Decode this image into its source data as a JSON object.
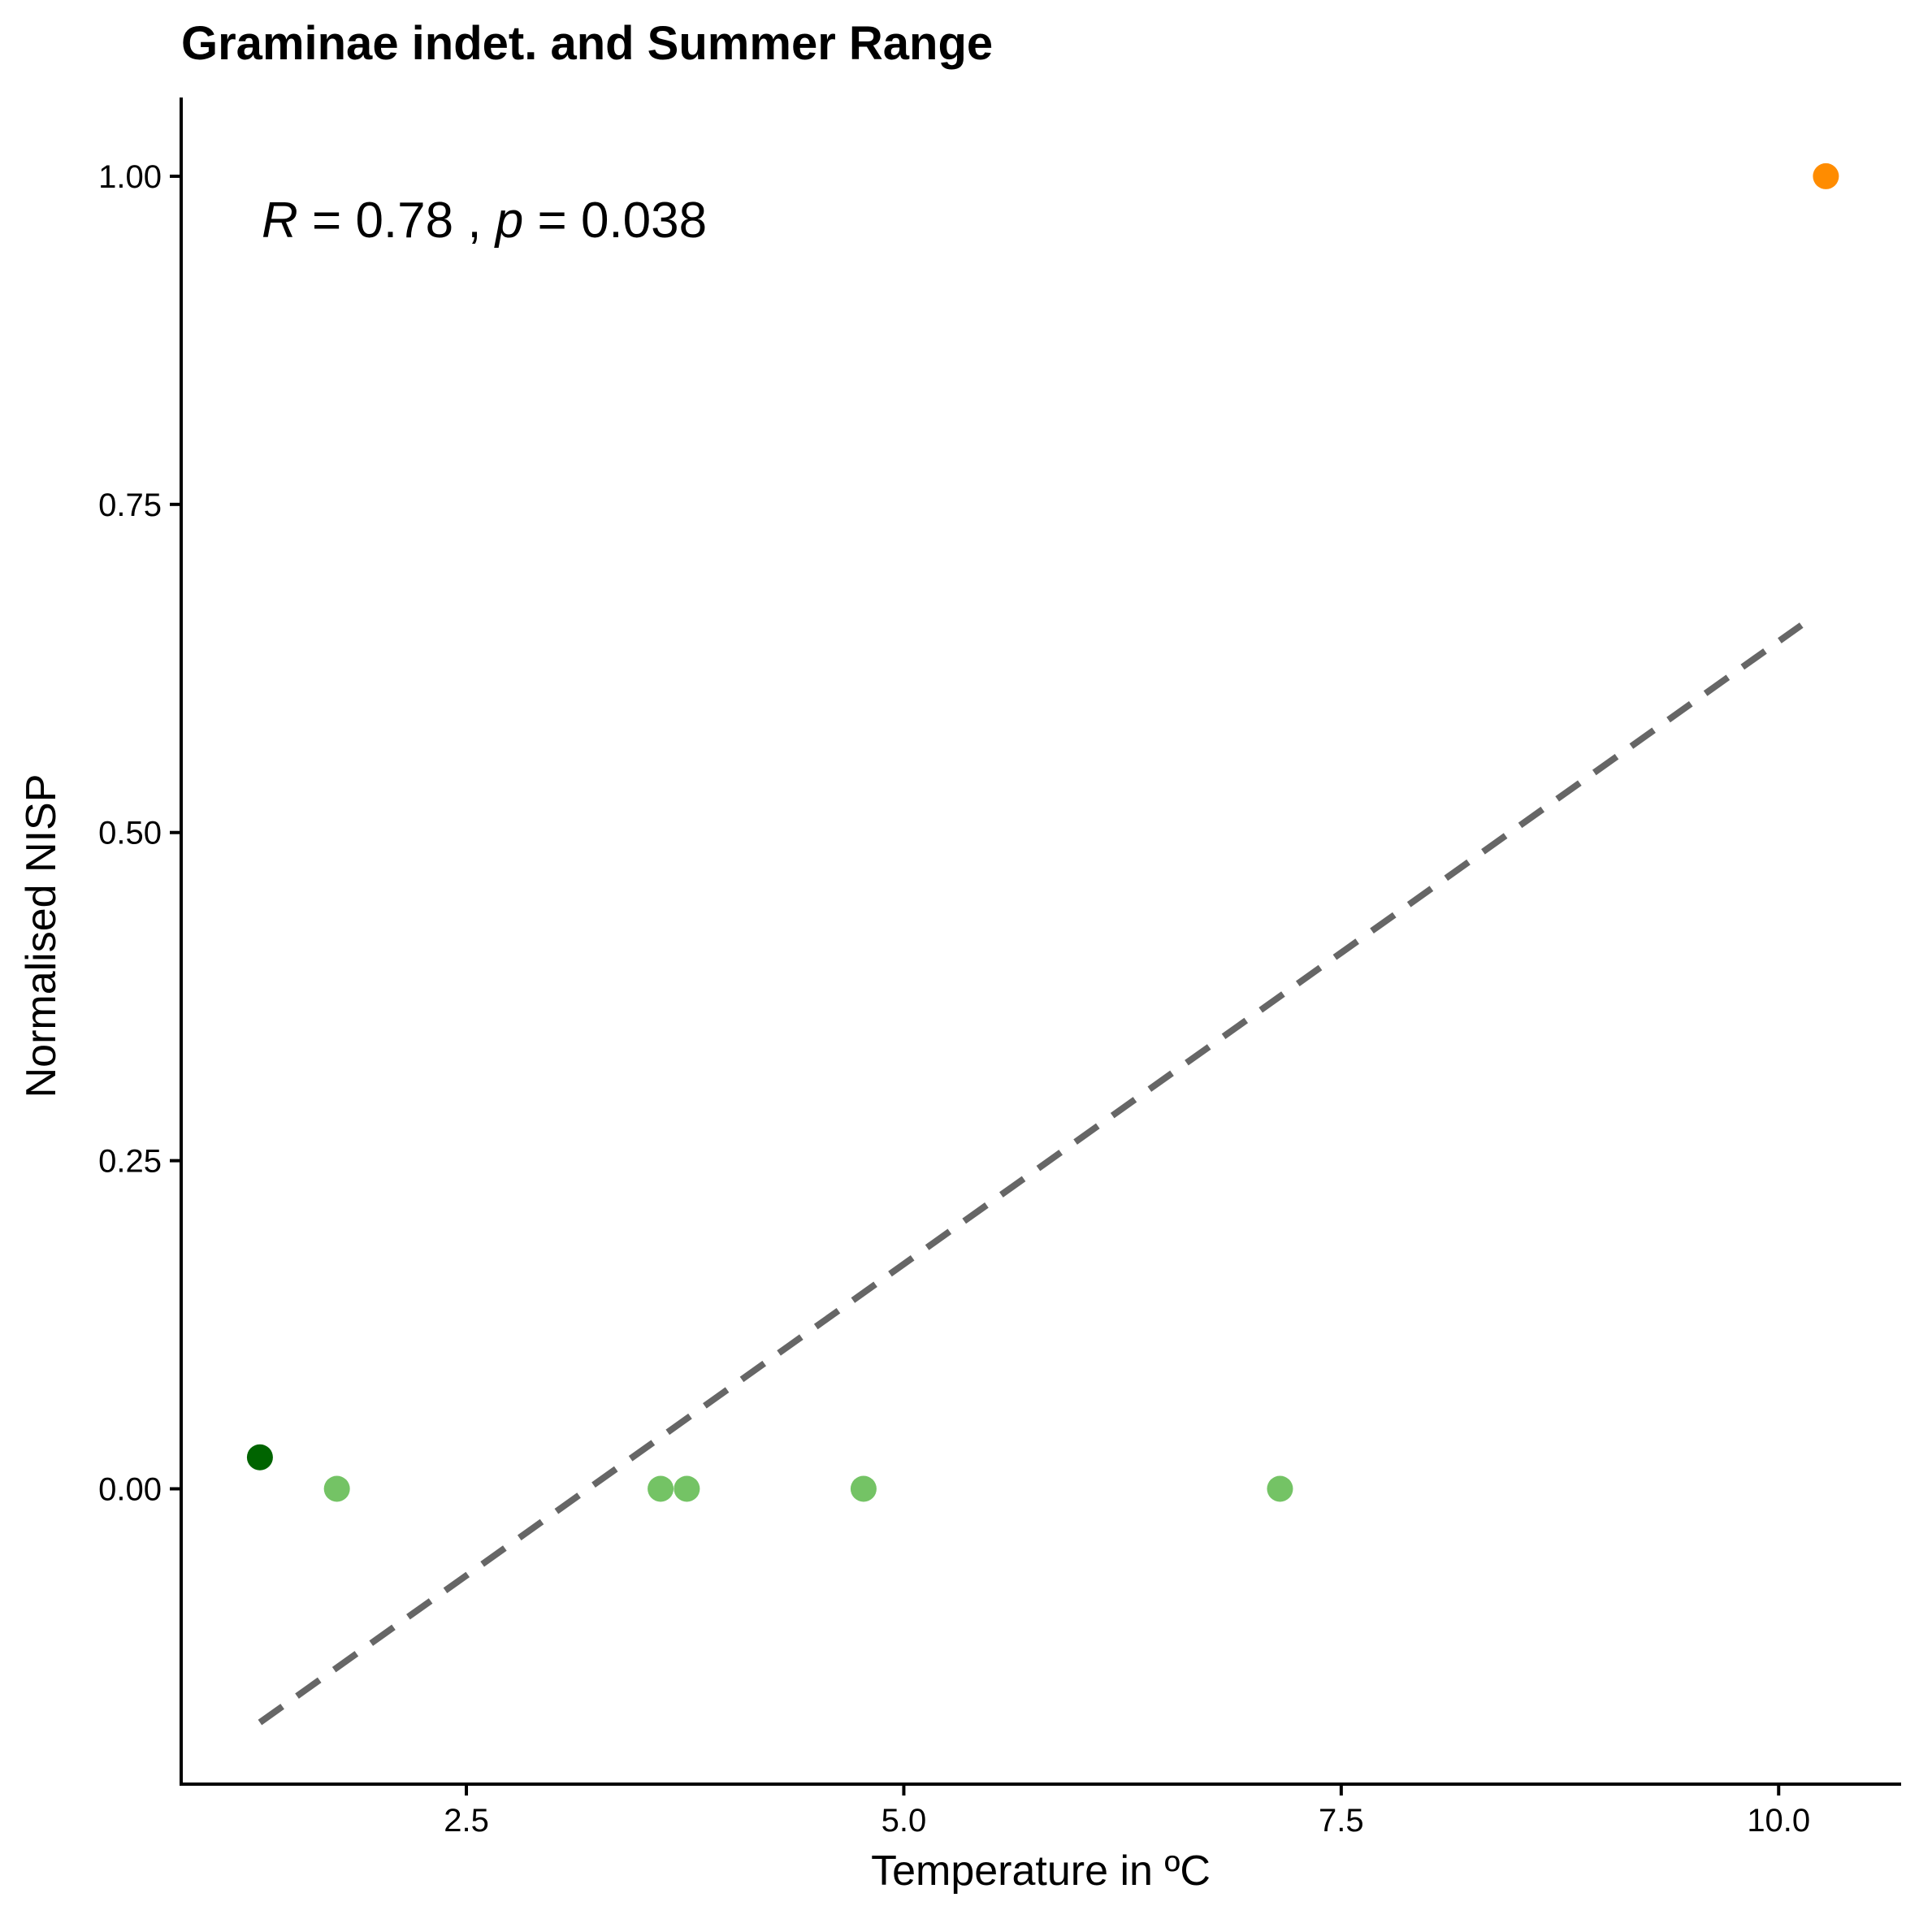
{
  "chart_data": {
    "type": "scatter",
    "title": "Graminae indet. and Summer Range",
    "xlabel": "Temperature in ºC",
    "ylabel": "Normalised NISP",
    "xlim": [
      0.87,
      10.7
    ],
    "ylim": [
      -0.225,
      1.06
    ],
    "x_ticks": [
      2.5,
      5.0,
      7.5,
      10.0
    ],
    "x_tick_labels": [
      "2.5",
      "5.0",
      "7.5",
      "10.0"
    ],
    "y_ticks": [
      0.0,
      0.25,
      0.5,
      0.75,
      1.0
    ],
    "y_tick_labels": [
      "0.00",
      "0.25",
      "0.50",
      "0.75",
      "1.00"
    ],
    "grid": false,
    "points": [
      {
        "x": 1.32,
        "y": 0.024,
        "color": "#006400"
      },
      {
        "x": 1.76,
        "y": 0.0,
        "color": "#74c365"
      },
      {
        "x": 3.61,
        "y": 0.0,
        "color": "#74c365"
      },
      {
        "x": 3.76,
        "y": 0.0,
        "color": "#74c365"
      },
      {
        "x": 4.77,
        "y": 0.0,
        "color": "#74c365"
      },
      {
        "x": 7.15,
        "y": 0.0,
        "color": "#74c365"
      },
      {
        "x": 10.27,
        "y": 1.0,
        "color": "#ff8c00"
      }
    ],
    "trend_line": {
      "x": [
        1.32,
        10.13
      ],
      "y": [
        -0.178,
        0.658
      ],
      "style": "dashed",
      "color": "#666666"
    },
    "annotation": {
      "r_symbol": "R",
      "r_value": " = 0.78 , ",
      "p_symbol": "p",
      "p_value": " = 0.038"
    }
  }
}
